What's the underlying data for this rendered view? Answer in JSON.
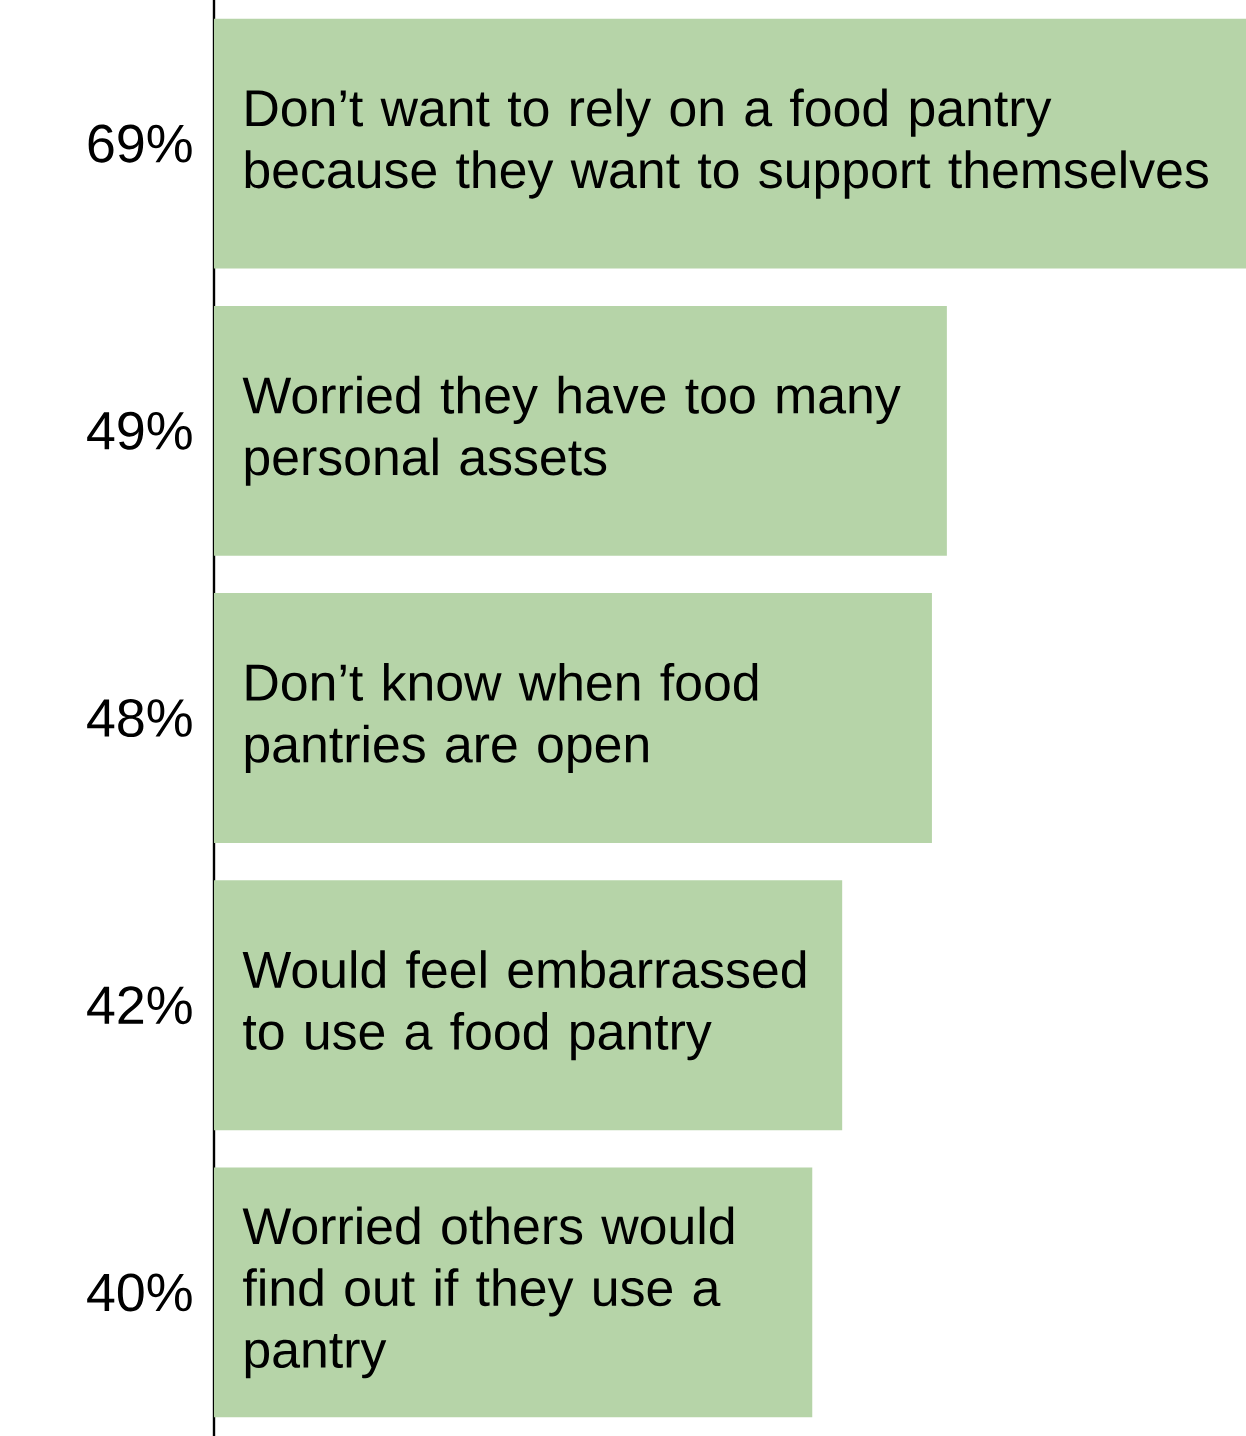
{
  "chart_data": {
    "type": "bar",
    "orientation": "horizontal",
    "categories": [
      "Don’t want to rely on a food pantry because they want to support themselves",
      "Worried they have too many personal assets",
      "Don’t know when food pantries are open",
      "Would feel embarrassed to use a food pantry",
      "Worried others would find out if they use a pantry"
    ],
    "values": [
      69,
      49,
      48,
      42,
      40
    ],
    "value_labels": [
      "69%",
      "49%",
      "48%",
      "42%",
      "40%"
    ],
    "color": "#b6d4a8"
  }
}
